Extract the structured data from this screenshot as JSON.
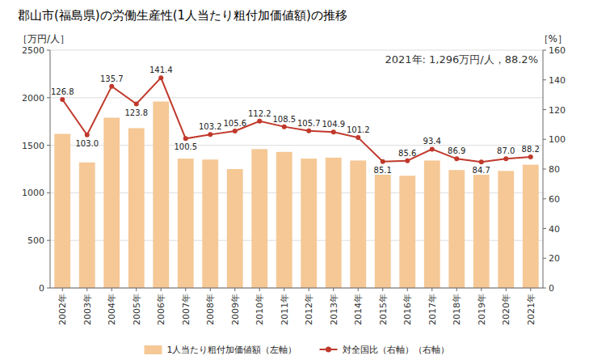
{
  "chart_data": {
    "type": "bar",
    "title": "郡山市(福島県)の労働生産性(1人当たり粗付加価値額)の推移",
    "annotation": "2021年: 1,296万円/人，88.2%",
    "ylabel": "［万円/人］",
    "y2label": "［%］",
    "categories": [
      "2002年",
      "2003年",
      "2004年",
      "2005年",
      "2006年",
      "2007年",
      "2008年",
      "2009年",
      "2010年",
      "2011年",
      "2012年",
      "2013年",
      "2014年",
      "2015年",
      "2016年",
      "2017年",
      "2018年",
      "2019年",
      "2020年",
      "2021年"
    ],
    "series": [
      {
        "name": "1人当たり粗付加価値額（左軸）",
        "type": "bar",
        "color": "#F5C896",
        "values": [
          1620,
          1320,
          1790,
          1680,
          1960,
          1360,
          1350,
          1250,
          1460,
          1430,
          1360,
          1370,
          1340,
          1190,
          1180,
          1340,
          1240,
          1190,
          1230,
          1296
        ]
      },
      {
        "name": "対全国比（右軸）（右軸）",
        "type": "line",
        "axis": "y2",
        "color": "#C0392B",
        "marker": "circle",
        "data_labels": true,
        "values": [
          126.8,
          103.0,
          135.7,
          123.8,
          141.4,
          100.5,
          103.2,
          105.6,
          112.2,
          108.5,
          105.7,
          104.9,
          101.2,
          85.1,
          85.6,
          93.4,
          86.9,
          84.7,
          87.0,
          88.2
        ],
        "value_labels": [
          "126.8",
          "103.0",
          "135.7",
          "123.8",
          "141.4",
          "100.5",
          "103.2",
          "105.6",
          "112.2",
          "108.5",
          "105.7",
          "104.9",
          "101.2",
          "85.1",
          "85.6",
          "93.4",
          "86.9",
          "84.7",
          "87.0",
          "88.2"
        ]
      }
    ],
    "ylim": [
      0,
      2500
    ],
    "yticks": [
      0,
      500,
      1000,
      1500,
      2000,
      2500
    ],
    "y2lim": [
      0,
      160
    ],
    "y2ticks": [
      0,
      20,
      40,
      60,
      80,
      100,
      120,
      140,
      160
    ],
    "grid": true,
    "legend": "bottom"
  }
}
